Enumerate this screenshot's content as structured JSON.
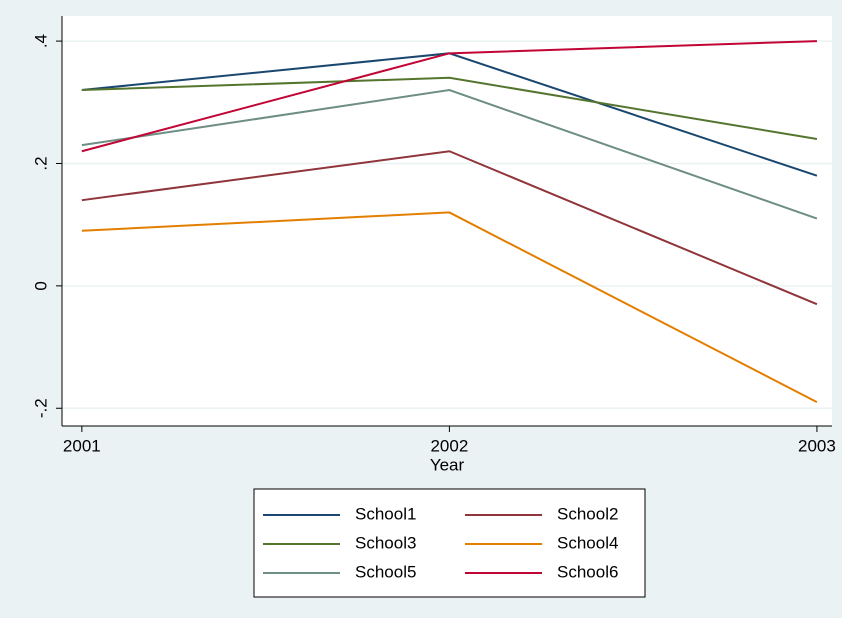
{
  "chart_data": {
    "type": "line",
    "x_label": "Year",
    "x": [
      2001,
      2002,
      2003
    ],
    "xlim": [
      2000.946,
      2003.041
    ],
    "xticks": [
      2001,
      2002,
      2003
    ],
    "ylim": [
      -0.229,
      0.441
    ],
    "yticks": [
      {
        "value": -0.2,
        "label": "-.2"
      },
      0,
      {
        "value": 0.2,
        "label": ".2"
      },
      {
        "value": 0.4,
        "label": ".4"
      }
    ],
    "grid": true,
    "legend": "bottom",
    "series": [
      {
        "name": "School1",
        "color": "#1a476f",
        "values": [
          0.32,
          0.38,
          0.18
        ]
      },
      {
        "name": "School2",
        "color": "#90353b",
        "values": [
          0.14,
          0.22,
          -0.03
        ]
      },
      {
        "name": "School3",
        "color": "#55752f",
        "values": [
          0.32,
          0.34,
          0.24
        ]
      },
      {
        "name": "School4",
        "color": "#e37e00",
        "values": [
          0.09,
          0.12,
          -0.19
        ]
      },
      {
        "name": "School5",
        "color": "#6e8e84",
        "values": [
          0.23,
          0.32,
          0.11
        ]
      },
      {
        "name": "School6",
        "color": "#c10534",
        "values": [
          0.22,
          0.38,
          0.4
        ]
      }
    ]
  }
}
